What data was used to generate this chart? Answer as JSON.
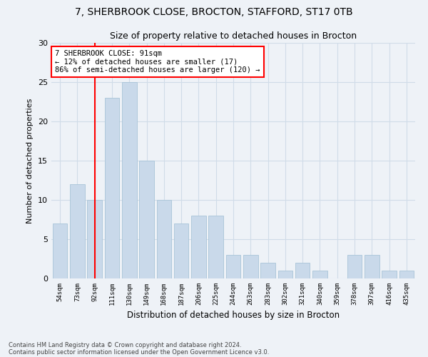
{
  "title1": "7, SHERBROOK CLOSE, BROCTON, STAFFORD, ST17 0TB",
  "title2": "Size of property relative to detached houses in Brocton",
  "xlabel": "Distribution of detached houses by size in Brocton",
  "ylabel": "Number of detached properties",
  "categories": [
    "54sqm",
    "73sqm",
    "92sqm",
    "111sqm",
    "130sqm",
    "149sqm",
    "168sqm",
    "187sqm",
    "206sqm",
    "225sqm",
    "244sqm",
    "263sqm",
    "283sqm",
    "302sqm",
    "321sqm",
    "340sqm",
    "359sqm",
    "378sqm",
    "397sqm",
    "416sqm",
    "435sqm"
  ],
  "values": [
    7,
    12,
    10,
    23,
    25,
    15,
    10,
    7,
    8,
    8,
    3,
    3,
    2,
    1,
    2,
    1,
    0,
    3,
    3,
    1,
    1
  ],
  "bar_color": "#c9d9ea",
  "bar_edge_color": "#a8c4d8",
  "grid_color": "#d0dce8",
  "annotation_box_text": "7 SHERBROOK CLOSE: 91sqm\n← 12% of detached houses are smaller (17)\n86% of semi-detached houses are larger (120) →",
  "annotation_box_color": "white",
  "annotation_box_edge_color": "red",
  "vline_x_index": 2,
  "vline_color": "red",
  "ylim": [
    0,
    30
  ],
  "yticks": [
    0,
    5,
    10,
    15,
    20,
    25,
    30
  ],
  "footnote1": "Contains HM Land Registry data © Crown copyright and database right 2024.",
  "footnote2": "Contains public sector information licensed under the Open Government Licence v3.0.",
  "bg_color": "#eef2f7",
  "plot_bg_color": "#eef2f7"
}
